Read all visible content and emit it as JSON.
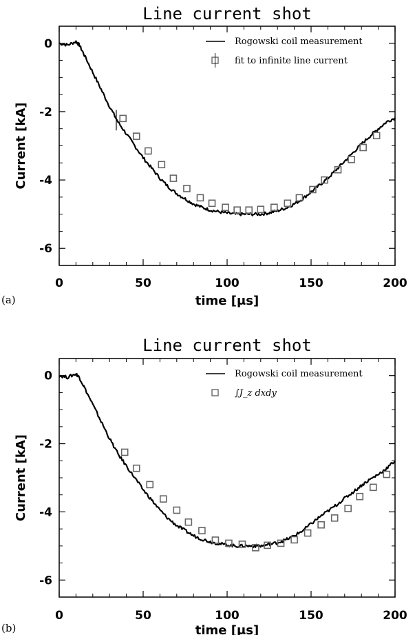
{
  "chart_data": [
    {
      "type": "line",
      "panel_label": "(a)",
      "title": "Line current shot",
      "xlabel": "time [μs]",
      "ylabel": "Current [kA]",
      "xlim": [
        0,
        200
      ],
      "ylim": [
        -6.5,
        0.5
      ],
      "xticks": [
        "0",
        "50",
        "100",
        "150",
        "200"
      ],
      "yticks": [
        "0",
        "-2",
        "-4",
        "-6"
      ],
      "legend": {
        "position": "top-right",
        "line_label": "Rogowski coil measurement",
        "marker_label": "fit to infinite line current"
      },
      "series": [
        {
          "name": "Rogowski coil measurement",
          "style": "line",
          "x": [
            0,
            5,
            10,
            12,
            15,
            20,
            25,
            30,
            35,
            40,
            45,
            50,
            55,
            60,
            65,
            70,
            75,
            80,
            85,
            90,
            95,
            100,
            105,
            110,
            115,
            120,
            125,
            130,
            135,
            140,
            145,
            150,
            155,
            160,
            165,
            170,
            175,
            180,
            185,
            190,
            195,
            200
          ],
          "y": [
            0.0,
            -0.05,
            0.05,
            -0.05,
            -0.35,
            -0.85,
            -1.35,
            -1.85,
            -2.3,
            -2.65,
            -3.0,
            -3.35,
            -3.65,
            -3.95,
            -4.2,
            -4.4,
            -4.55,
            -4.7,
            -4.8,
            -4.88,
            -4.93,
            -4.97,
            -5.0,
            -5.0,
            -5.0,
            -5.0,
            -4.96,
            -4.9,
            -4.82,
            -4.7,
            -4.55,
            -4.35,
            -4.15,
            -3.95,
            -3.7,
            -3.45,
            -3.2,
            -2.95,
            -2.72,
            -2.5,
            -2.3,
            -2.18
          ]
        },
        {
          "name": "fit to infinite line current",
          "style": "square-marker",
          "x": [
            38,
            46,
            53,
            61,
            68,
            76,
            84,
            91,
            99,
            106,
            113,
            120,
            128,
            136,
            143,
            151,
            158,
            166,
            174,
            181,
            189
          ],
          "y": [
            -2.2,
            -2.72,
            -3.15,
            -3.55,
            -3.95,
            -4.25,
            -4.52,
            -4.68,
            -4.8,
            -4.88,
            -4.88,
            -4.86,
            -4.8,
            -4.68,
            -4.52,
            -4.28,
            -4.0,
            -3.7,
            -3.4,
            -3.05,
            -2.7
          ]
        }
      ]
    },
    {
      "type": "line",
      "panel_label": "(b)",
      "title": "Line current shot",
      "xlabel": "time [μs]",
      "ylabel": "Current [kA]",
      "xlim": [
        0,
        200
      ],
      "ylim": [
        -6.5,
        0.5
      ],
      "xticks": [
        "0",
        "50",
        "100",
        "150",
        "200"
      ],
      "yticks": [
        "0",
        "-2",
        "-4",
        "-6"
      ],
      "legend": {
        "position": "top-right",
        "line_label": "Rogowski coil measurement",
        "marker_label": "∫J_z dxdy"
      },
      "series": [
        {
          "name": "Rogowski coil measurement",
          "style": "line",
          "x": [
            0,
            5,
            10,
            12,
            15,
            20,
            25,
            30,
            35,
            40,
            45,
            50,
            55,
            60,
            65,
            70,
            75,
            80,
            85,
            90,
            95,
            100,
            105,
            110,
            115,
            120,
            125,
            130,
            135,
            140,
            145,
            150,
            155,
            160,
            165,
            170,
            175,
            180,
            185,
            190,
            195,
            200
          ],
          "y": [
            0.0,
            -0.05,
            0.05,
            -0.05,
            -0.35,
            -0.85,
            -1.35,
            -1.85,
            -2.3,
            -2.65,
            -3.0,
            -3.35,
            -3.65,
            -3.95,
            -4.2,
            -4.4,
            -4.55,
            -4.7,
            -4.8,
            -4.88,
            -4.93,
            -4.97,
            -5.0,
            -5.0,
            -5.0,
            -5.0,
            -4.96,
            -4.9,
            -4.82,
            -4.7,
            -4.55,
            -4.35,
            -4.15,
            -3.98,
            -3.8,
            -3.6,
            -3.42,
            -3.22,
            -3.05,
            -2.9,
            -2.72,
            -2.5
          ]
        },
        {
          "name": "∫J_z dxdy",
          "style": "square-marker",
          "x": [
            39,
            46,
            54,
            62,
            70,
            77,
            85,
            93,
            101,
            109,
            117,
            124,
            132,
            140,
            148,
            156,
            164,
            172,
            179,
            187,
            195
          ],
          "y": [
            -2.25,
            -2.72,
            -3.2,
            -3.62,
            -3.95,
            -4.3,
            -4.55,
            -4.83,
            -4.92,
            -4.95,
            -5.05,
            -4.98,
            -4.92,
            -4.82,
            -4.62,
            -4.38,
            -4.18,
            -3.9,
            -3.55,
            -3.28,
            -2.9
          ]
        }
      ]
    }
  ]
}
